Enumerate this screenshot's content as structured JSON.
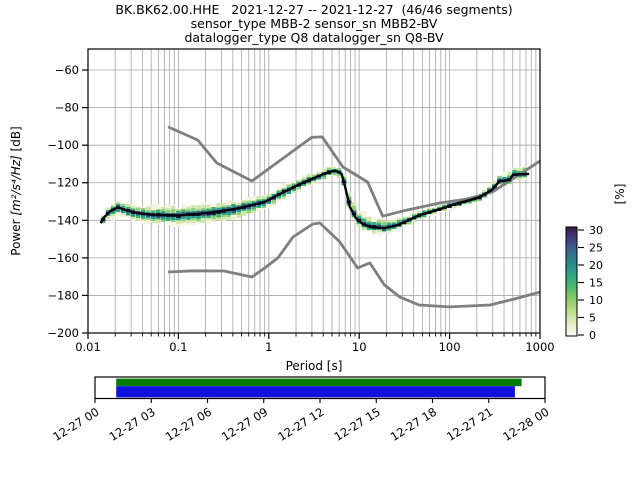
{
  "figure": {
    "title_line1": "BK.BK62.00.HHE   2021-12-27 -- 2021-12-27  (46/46 segments)",
    "title_line2": "sensor_type MBB-2 sensor_sn MBB2-BV",
    "title_line3": "datalogger_type Q8 datalogger_sn Q8-BV"
  },
  "axes": {
    "xlabel": "Period [s]",
    "ylabel_prefix": "Power ",
    "ylabel_math": "[m²/s⁴/Hz]",
    "ylabel_suffix": " [dB]",
    "x_tick_labels": [
      "0.01",
      "0.1",
      "1",
      "10",
      "100",
      "1000"
    ],
    "x_tick_values": [
      0.01,
      0.1,
      1,
      10,
      100,
      1000
    ],
    "y_tick_labels": [
      "−60",
      "−80",
      "−100",
      "−120",
      "−140",
      "−160",
      "−180",
      "−200"
    ],
    "y_tick_values": [
      -60,
      -80,
      -100,
      -120,
      -140,
      -160,
      -180,
      -200
    ],
    "grid_color": "#a6a6a6"
  },
  "colorbar": {
    "label": "[%]",
    "tick_values": [
      0,
      5,
      10,
      15,
      20,
      25,
      30
    ],
    "vmin": 0,
    "vmax": 30,
    "gradient": [
      [
        0.0,
        "#fbfaf4"
      ],
      [
        0.09,
        "#edf0d2"
      ],
      [
        0.2,
        "#c8e39b"
      ],
      [
        0.33,
        "#8ecd68"
      ],
      [
        0.46,
        "#4bb56f"
      ],
      [
        0.58,
        "#2aa287"
      ],
      [
        0.7,
        "#2e7f8e"
      ],
      [
        0.82,
        "#3a5a8b"
      ],
      [
        0.92,
        "#453179"
      ],
      [
        1.0,
        "#2f1c3e"
      ]
    ]
  },
  "timeline": {
    "tick_labels": [
      "12-27 00",
      "12-27 03",
      "12-27 06",
      "12-27 09",
      "12-27 12",
      "12-27 15",
      "12-27 18",
      "12-27 21",
      "12-28 00"
    ],
    "segments_color": "#077b07",
    "coverage_color": "#1111dd",
    "segments_span": [
      0.047,
      0.948
    ],
    "coverage_span": [
      0.047,
      0.933
    ]
  },
  "chart_data": {
    "type": "heatmap",
    "title": "BK.BK62.00.HHE   2021-12-27 -- 2021-12-27  (46/46 segments)",
    "xlabel": "Period [s]",
    "ylabel": "Power [m²/s⁴/Hz] [dB]",
    "legend_label": "[%]",
    "x_range_s": [
      0.01,
      1000
    ],
    "y_range_db": [
      -200,
      -48.8
    ],
    "percent_range": [
      0,
      30
    ],
    "x_scale": "log",
    "grid": true,
    "layer_colors": [
      "#f3f5e0",
      "#cfe7ad",
      "#8fcf7f",
      "#3fae74",
      "#27988c",
      "#375e8c",
      "#191734"
    ],
    "layer_fractions": [
      1.0,
      0.8,
      0.6,
      0.46,
      0.34,
      0.24,
      0.14
    ],
    "mode_curve_period_db": [
      [
        0.0138,
        -141.5
      ],
      [
        0.015,
        -138.5
      ],
      [
        0.0175,
        -135.2
      ],
      [
        0.0214,
        -133.0
      ],
      [
        0.0263,
        -134.6
      ],
      [
        0.0357,
        -136.2
      ],
      [
        0.055,
        -137.2
      ],
      [
        0.1,
        -137.4
      ],
      [
        0.165,
        -136.6
      ],
      [
        0.24,
        -135.7
      ],
      [
        0.35,
        -134.6
      ],
      [
        0.48,
        -133.4
      ],
      [
        0.65,
        -131.9
      ],
      [
        0.9,
        -130.2
      ],
      [
        1.2,
        -127.0
      ],
      [
        1.63,
        -123.9
      ],
      [
        2.2,
        -120.7
      ],
      [
        3.0,
        -118.0
      ],
      [
        3.9,
        -115.6
      ],
      [
        4.7,
        -114.2
      ],
      [
        5.5,
        -113.6
      ],
      [
        6.4,
        -115.3
      ],
      [
        7.0,
        -122.3
      ],
      [
        7.9,
        -132.9
      ],
      [
        9.2,
        -138.9
      ],
      [
        11,
        -142.1
      ],
      [
        13.7,
        -143.7
      ],
      [
        19,
        -144.1
      ],
      [
        24.6,
        -143.1
      ],
      [
        32,
        -140.9
      ],
      [
        46,
        -137.3
      ],
      [
        78,
        -134.1
      ],
      [
        123,
        -130.9
      ],
      [
        167,
        -129.3
      ],
      [
        213,
        -127.7
      ],
      [
        292,
        -124.0
      ],
      [
        356,
        -119.2
      ],
      [
        460,
        -118.6
      ],
      [
        500,
        -115.9
      ],
      [
        645,
        -115.4
      ],
      [
        760,
        -115.3
      ]
    ],
    "spread_period_hi_lo_db": [
      [
        0.0138,
        2.0,
        2.5
      ],
      [
        0.02,
        3.8,
        4.5
      ],
      [
        0.03,
        3.5,
        4.5
      ],
      [
        0.06,
        4.5,
        5.0
      ],
      [
        0.12,
        5.0,
        5.0
      ],
      [
        0.3,
        4.5,
        5.5
      ],
      [
        0.6,
        4.0,
        5.0
      ],
      [
        1.0,
        3.5,
        4.0
      ],
      [
        2.2,
        3.0,
        3.5
      ],
      [
        4.0,
        2.5,
        2.8
      ],
      [
        5.5,
        2.3,
        2.5
      ],
      [
        7.0,
        4.5,
        2.5
      ],
      [
        9.0,
        6.5,
        2.5
      ],
      [
        13,
        5.5,
        3.0
      ],
      [
        19,
        4.3,
        3.3
      ],
      [
        30,
        3.0,
        2.5
      ],
      [
        60,
        2.2,
        2.0
      ],
      [
        120,
        2.0,
        2.0
      ],
      [
        213,
        2.2,
        2.0
      ],
      [
        300,
        3.0,
        2.5
      ],
      [
        460,
        4.5,
        3.0
      ],
      [
        700,
        4.0,
        3.0
      ]
    ],
    "noise_model_high_period_db": [
      [
        0.077,
        -90.3
      ],
      [
        0.164,
        -97.3
      ],
      [
        0.266,
        -109.5
      ],
      [
        0.65,
        -119.1
      ],
      [
        3.0,
        -95.8
      ],
      [
        3.9,
        -95.6
      ],
      [
        6.6,
        -111.6
      ],
      [
        12.4,
        -119.6
      ],
      [
        18.2,
        -137.8
      ],
      [
        33,
        -134.6
      ],
      [
        78,
        -130.8
      ],
      [
        160,
        -128.6
      ],
      [
        300,
        -124.8
      ],
      [
        1000,
        -108.5
      ]
    ],
    "noise_model_low_period_db": [
      [
        0.077,
        -167.5
      ],
      [
        0.15,
        -166.9
      ],
      [
        0.32,
        -167.0
      ],
      [
        0.65,
        -170.2
      ],
      [
        0.9,
        -165.4
      ],
      [
        1.26,
        -160.0
      ],
      [
        1.85,
        -148.9
      ],
      [
        3.06,
        -142.0
      ],
      [
        3.66,
        -141.4
      ],
      [
        6.1,
        -151.5
      ],
      [
        9.6,
        -165.4
      ],
      [
        13.1,
        -162.7
      ],
      [
        19,
        -174.4
      ],
      [
        28,
        -180.8
      ],
      [
        46,
        -185.1
      ],
      [
        100,
        -186.1
      ],
      [
        280,
        -185.1
      ],
      [
        520,
        -181.9
      ],
      [
        1000,
        -178.2
      ]
    ],
    "noise_model_color": "#7f7f7f",
    "mode_line_color": "#06060f"
  }
}
